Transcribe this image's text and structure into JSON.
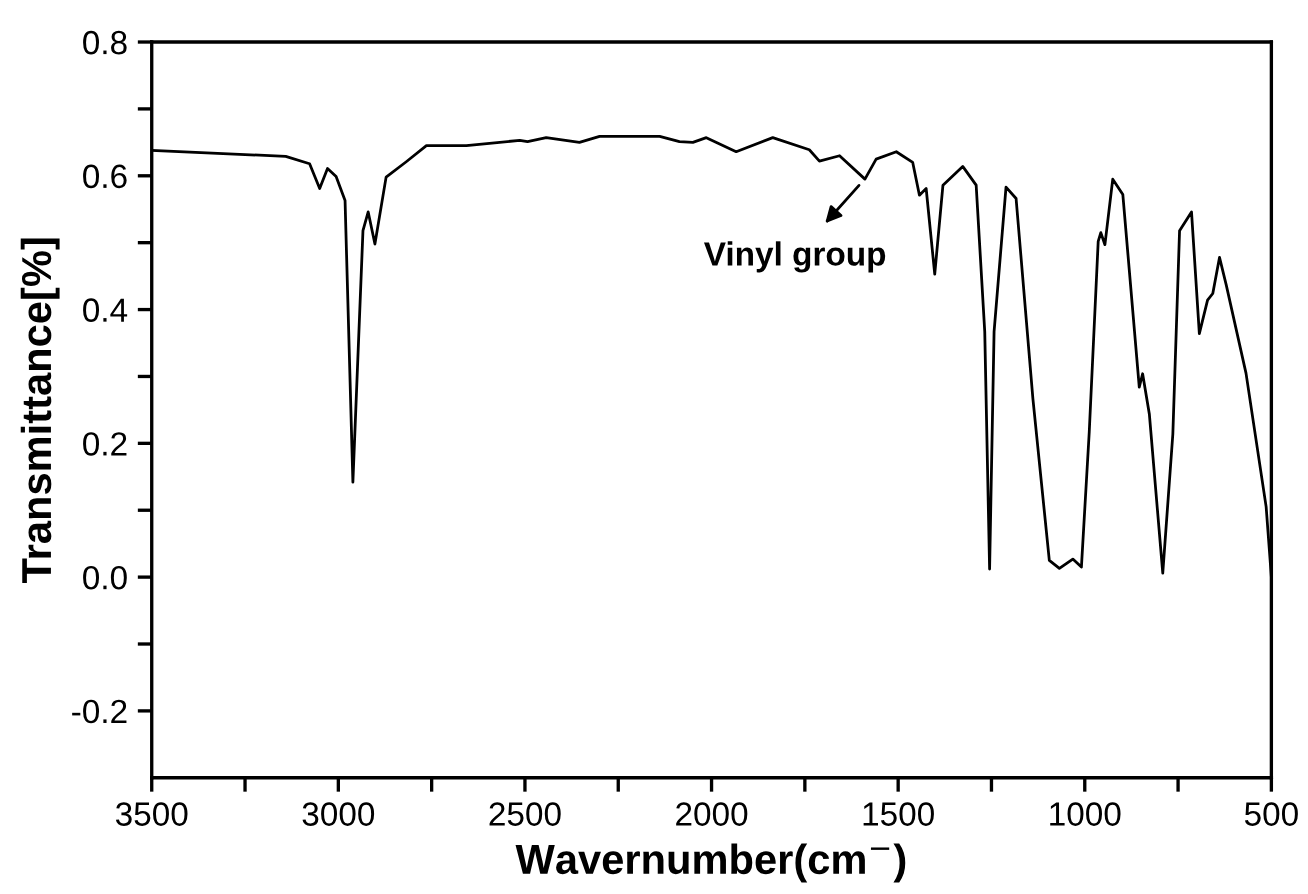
{
  "chart_data": {
    "type": "line",
    "xlabel": "Wavernumber(cm$^{−}$)",
    "ylabel": "Transmittance[%]",
    "xlim": [
      3500,
      500
    ],
    "ylim": [
      -0.3,
      0.8
    ],
    "xticks": [
      3500,
      {
        "value": 3250,
        "label": null
      },
      3000,
      {
        "value": 2750,
        "label": null
      },
      2500,
      {
        "value": 2250,
        "label": null
      },
      2000,
      {
        "value": 1750,
        "label": null
      },
      1500,
      {
        "value": 1250,
        "label": null
      },
      1000,
      {
        "value": 750,
        "label": null
      },
      500
    ],
    "yticks": [
      -0.2,
      {
        "value": -0.1,
        "label": null
      },
      {
        "value": 0.0,
        "label": "0.0"
      },
      {
        "value": 0.1,
        "label": null
      },
      0.2,
      {
        "value": 0.3,
        "label": null
      },
      0.4,
      {
        "value": 0.5,
        "label": null
      },
      0.6,
      {
        "value": 0.7,
        "label": null
      },
      0.8
    ],
    "grid": false,
    "legend": false,
    "marker": "none",
    "line_style": "solid",
    "annotations": [
      {
        "text": "Vinyl group",
        "x": 1590,
        "y": 0.595
      }
    ],
    "series": [
      {
        "color": "#000000",
        "x": [
          3500,
          3141,
          3077,
          3050,
          3029,
          3006,
          2982,
          2961,
          2934,
          2920,
          2902,
          2872,
          2818,
          2764,
          2657,
          2514,
          2493,
          2443,
          2354,
          2300,
          2139,
          2086,
          2050,
          2014,
          1934,
          1836,
          1738,
          1711,
          1657,
          1589,
          1559,
          1505,
          1461,
          1443,
          1425,
          1402,
          1380,
          1327,
          1291,
          1268,
          1255,
          1243,
          1211,
          1184,
          1139,
          1095,
          1068,
          1032,
          1009,
          988,
          964,
          957,
          946,
          925,
          898,
          854,
          845,
          827,
          791,
          764,
          746,
          714,
          693,
          671,
          657,
          639,
          621,
          568,
          514,
          500
        ],
        "values": [
          0.638,
          0.629,
          0.618,
          0.581,
          0.611,
          0.599,
          0.563,
          0.142,
          0.518,
          0.546,
          0.498,
          0.598,
          0.621,
          0.645,
          0.645,
          0.653,
          0.651,
          0.657,
          0.65,
          0.659,
          0.659,
          0.651,
          0.65,
          0.657,
          0.636,
          0.657,
          0.639,
          0.622,
          0.63,
          0.595,
          0.625,
          0.636,
          0.62,
          0.571,
          0.581,
          0.453,
          0.586,
          0.614,
          0.586,
          0.367,
          0.012,
          0.367,
          0.583,
          0.566,
          0.267,
          0.025,
          0.013,
          0.027,
          0.015,
          0.217,
          0.502,
          0.515,
          0.497,
          0.595,
          0.572,
          0.284,
          0.304,
          0.244,
          0.006,
          0.214,
          0.518,
          0.546,
          0.364,
          0.414,
          0.424,
          0.478,
          0.437,
          0.305,
          0.105,
          0.0
        ]
      }
    ]
  }
}
